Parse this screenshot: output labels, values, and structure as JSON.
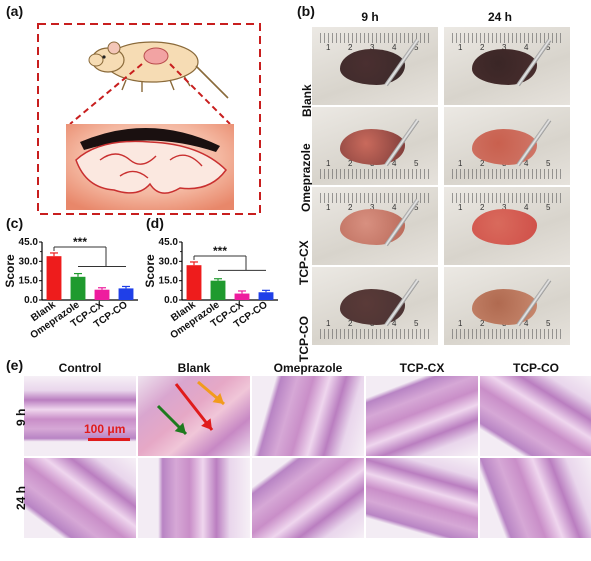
{
  "panels": {
    "a": {
      "label": "(a)"
    },
    "b": {
      "label": "(b)",
      "columns": [
        "9 h",
        "24 h"
      ],
      "rows": [
        "Blank",
        "Omeprazole",
        "TCP-CX",
        "TCP-CO"
      ],
      "ruler_numbers": [
        "1",
        "2",
        "3",
        "4",
        "5"
      ]
    },
    "c": {
      "label": "(c)"
    },
    "d": {
      "label": "(d)"
    },
    "e": {
      "label": "(e)",
      "columns": [
        "Control",
        "Blank",
        "Omeprazole",
        "TCP-CX",
        "TCP-CO"
      ],
      "rows": [
        "9 h",
        "24 h"
      ],
      "scalebar": "100 μm"
    }
  },
  "chart_data": [
    {
      "type": "bar",
      "panel": "c",
      "ylabel": "Score",
      "categories": [
        "Blank",
        "Omeprazole",
        "TCP-CX",
        "TCP-CO"
      ],
      "values": [
        34,
        18,
        8,
        9
      ],
      "errors": [
        2.5,
        2.5,
        1.5,
        1.5
      ],
      "colors": [
        "#ee1c1c",
        "#1f9a2e",
        "#ee1c9e",
        "#1f3fe8"
      ],
      "ylim": [
        0,
        45
      ],
      "yticks": [
        "0.0",
        "15.0",
        "30.0",
        "45.0"
      ],
      "yticks_minor": [
        "7.5",
        "22.5",
        "37.5"
      ],
      "annotation": "***"
    },
    {
      "type": "bar",
      "panel": "d",
      "ylabel": "Score",
      "categories": [
        "Blank",
        "Omeprazole",
        "TCP-CX",
        "TCP-CO"
      ],
      "values": [
        27,
        15,
        5,
        6
      ],
      "errors": [
        2.5,
        1.5,
        2.0,
        1.5
      ],
      "colors": [
        "#ee1c1c",
        "#1f9a2e",
        "#ee1c9e",
        "#1f3fe8"
      ],
      "ylim": [
        0,
        45
      ],
      "yticks": [
        "0.0",
        "15.0",
        "30.0",
        "45.0"
      ],
      "yticks_minor": [
        "7.5",
        "22.5",
        "37.5"
      ],
      "annotation": "***"
    }
  ]
}
